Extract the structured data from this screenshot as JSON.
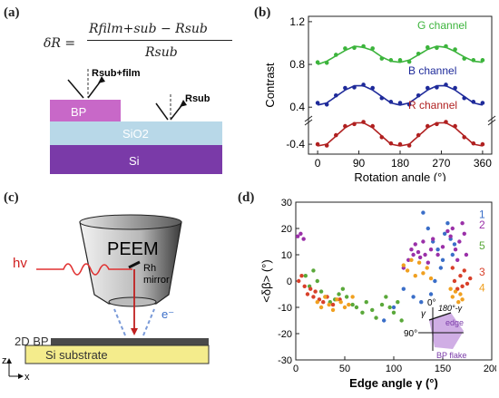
{
  "panels": {
    "a": {
      "label": "(a)",
      "formula": {
        "lhs": "δR =",
        "numerator": "Rfilm+sub − Rsub",
        "denominator": "Rsub"
      },
      "labels": {
        "r_sub_film": "Rsub+film",
        "r_sub": "Rsub",
        "bp": "BP",
        "sio2": "SiO2",
        "si": "Si"
      },
      "colors": {
        "bp": "#c868c8",
        "sio2": "#b8d8e8",
        "si": "#7a3aa8"
      }
    },
    "b": {
      "label": "(b)"
    },
    "c": {
      "label": "(c)",
      "labels": {
        "hv": "hv",
        "peem": "PEEM",
        "rh": "Rh",
        "mirror": "mirror",
        "electron": "e⁻",
        "bp2d": "2D BP",
        "substrate": "Si substrate",
        "z": "z",
        "x": "x"
      }
    },
    "d": {
      "label": "(d)",
      "inset": {
        "angle_0": "0°",
        "angle_90": "90°",
        "gamma": "γ",
        "supp": "180°-γ",
        "edge": "edge",
        "flake": "BP flake"
      }
    }
  },
  "chart_data": [
    {
      "type": "line",
      "panel": "b",
      "xlabel": "Rotation angle (°)",
      "ylabel": "Contrast",
      "x_ticks": [
        0,
        90,
        180,
        270,
        360
      ],
      "y_ticks": [
        "1.2",
        "0.8",
        "0.4",
        "-0.4"
      ],
      "xlim": [
        -20,
        380
      ],
      "axis_break": true,
      "series": [
        {
          "name": "G channel",
          "color": "#3cb43c",
          "x": [
            0,
            20,
            40,
            60,
            80,
            100,
            120,
            140,
            160,
            180,
            200,
            220,
            240,
            260,
            280,
            300,
            320,
            340,
            360
          ],
          "y": [
            0.8,
            0.83,
            0.88,
            0.93,
            0.97,
            0.96,
            0.93,
            0.87,
            0.83,
            0.82,
            0.84,
            0.89,
            0.94,
            0.97,
            0.96,
            0.92,
            0.87,
            0.83,
            0.82
          ]
        },
        {
          "name": "B channel",
          "color": "#1e2a9a",
          "x": [
            0,
            20,
            40,
            60,
            80,
            100,
            120,
            140,
            160,
            180,
            200,
            220,
            240,
            260,
            280,
            300,
            320,
            340,
            360
          ],
          "y": [
            0.42,
            0.44,
            0.5,
            0.56,
            0.6,
            0.6,
            0.56,
            0.5,
            0.44,
            0.42,
            0.44,
            0.5,
            0.56,
            0.6,
            0.6,
            0.56,
            0.5,
            0.44,
            0.42
          ]
        },
        {
          "name": "R channel",
          "color": "#b02020",
          "x": [
            0,
            20,
            40,
            60,
            80,
            100,
            120,
            140,
            160,
            180,
            200,
            220,
            240,
            260,
            280,
            300,
            320,
            340,
            360
          ],
          "y": [
            -0.42,
            -0.4,
            -0.3,
            -0.2,
            -0.14,
            -0.14,
            -0.2,
            -0.3,
            -0.4,
            -0.42,
            -0.4,
            -0.3,
            -0.2,
            -0.14,
            -0.14,
            -0.2,
            -0.3,
            -0.4,
            -0.42
          ]
        }
      ]
    },
    {
      "type": "scatter",
      "panel": "d",
      "xlabel": "Edge angle γ (°)",
      "ylabel": "<δβ> (°)",
      "xlim": [
        0,
        200
      ],
      "ylim": [
        -30,
        30
      ],
      "x_ticks": [
        0,
        50,
        100,
        150,
        200
      ],
      "y_ticks": [
        30,
        20,
        10,
        0,
        -10,
        -20,
        -30
      ],
      "series": [
        {
          "name": "1",
          "color": "#3a6ec8",
          "x": [
            130,
            135,
            140,
            145,
            150,
            152,
            155,
            158,
            160,
            162,
            148,
            142,
            138,
            128,
            120,
            110,
            100,
            90
          ],
          "y": [
            26,
            20,
            15,
            12,
            8,
            18,
            22,
            16,
            10,
            14,
            5,
            0,
            -5,
            -8,
            -6,
            -3,
            -10,
            -15
          ]
        },
        {
          "name": "2",
          "color": "#9a30a8",
          "x": [
            2,
            5,
            8,
            110,
            115,
            118,
            120,
            122,
            125,
            127,
            130,
            132,
            135,
            138,
            140,
            145,
            150,
            155,
            158,
            160,
            163,
            165,
            167,
            170,
            172,
            174
          ],
          "y": [
            17,
            18,
            16,
            5,
            8,
            12,
            10,
            14,
            11,
            9,
            15,
            10,
            7,
            12,
            16,
            10,
            13,
            19,
            17,
            20,
            12,
            8,
            15,
            22,
            18,
            10
          ]
        },
        {
          "name": "5",
          "color": "#5aa83a",
          "x": [
            10,
            14,
            18,
            22,
            26,
            30,
            35,
            40,
            44,
            48,
            52,
            58,
            62,
            68,
            72,
            78,
            82,
            88,
            92,
            96,
            100,
            104,
            108
          ],
          "y": [
            2,
            -2,
            4,
            0,
            -4,
            -6,
            -8,
            -7,
            -5,
            -3,
            -6,
            -9,
            -10,
            -12,
            -8,
            -11,
            -14,
            -9,
            -6,
            -10,
            -12,
            -8,
            -15
          ]
        },
        {
          "name": "3",
          "color": "#d8402a",
          "x": [
            3,
            6,
            9,
            12,
            15,
            18,
            20,
            24,
            28,
            32,
            38,
            45,
            160,
            162,
            165,
            168,
            170,
            172,
            175,
            178
          ],
          "y": [
            0,
            2,
            -2,
            -5,
            -3,
            -6,
            -4,
            -7,
            -8,
            -6,
            -9,
            -7,
            5,
            0,
            -3,
            2,
            -2,
            4,
            -1,
            1
          ]
        },
        {
          "name": "4",
          "color": "#f0a020",
          "x": [
            22,
            26,
            30,
            34,
            38,
            42,
            46,
            50,
            54,
            58,
            110,
            114,
            118,
            122,
            126,
            130,
            134,
            138,
            158,
            160,
            163,
            166,
            168,
            170
          ],
          "y": [
            -8,
            -10,
            -6,
            -9,
            -11,
            -7,
            -8,
            -10,
            -9,
            -6,
            6,
            4,
            8,
            2,
            7,
            3,
            5,
            1,
            -3,
            -6,
            -4,
            -8,
            -5,
            -7
          ]
        }
      ]
    }
  ]
}
